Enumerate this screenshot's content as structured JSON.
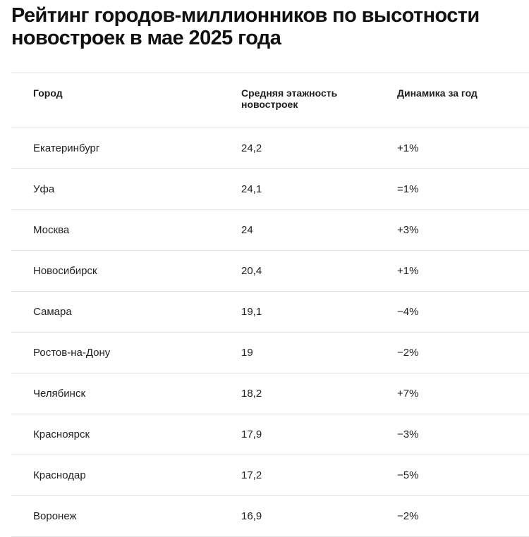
{
  "title": "Рейтинг городов-миллионников по высотности новостроек в мае 2025 года",
  "table": {
    "headers": [
      "Город",
      "Средняя этажность новостроек",
      "Динамика за год"
    ],
    "rows": [
      [
        "Екатеринбург",
        "24,2",
        "+1%"
      ],
      [
        "Уфа",
        "24,1",
        "=1%"
      ],
      [
        "Москва",
        "24",
        "+3%"
      ],
      [
        "Новосибирск",
        "20,4",
        "+1%"
      ],
      [
        "Самара",
        "19,1",
        "−4%"
      ],
      [
        "Ростов-на-Дону",
        "19",
        "−2%"
      ],
      [
        "Челябинск",
        "18,2",
        "+7%"
      ],
      [
        "Красноярск",
        "17,9",
        "−3%"
      ],
      [
        "Краснодар",
        "17,2",
        "−5%"
      ],
      [
        "Воронеж",
        "16,9",
        "−2%"
      ]
    ]
  }
}
